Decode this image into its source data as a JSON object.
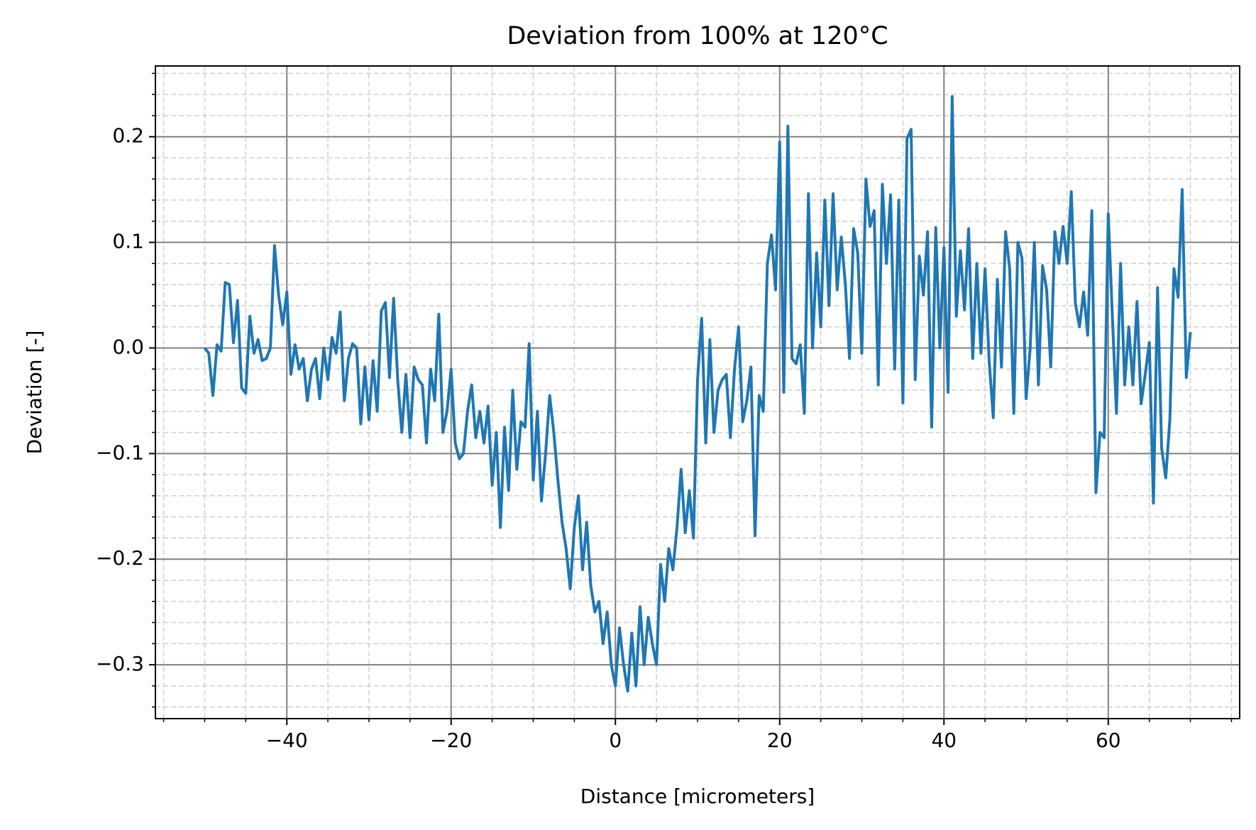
{
  "chart_data": {
    "type": "line",
    "title": "Deviation from 100% at 120°C",
    "xlabel": "Distance [micrometers]",
    "ylabel": "Deviation [-]",
    "xlim": [
      -56,
      76
    ],
    "ylim": [
      -0.351,
      0.267
    ],
    "xticks": [
      {
        "value": -40,
        "label": "−40"
      },
      {
        "value": -20,
        "label": "−20"
      },
      0,
      20,
      40,
      60
    ],
    "yticks": [
      {
        "value": -0.3,
        "label": "−0.3"
      },
      {
        "value": -0.2,
        "label": "−0.2"
      },
      {
        "value": -0.1,
        "label": "−0.1"
      },
      {
        "value": 0,
        "label": "0.0"
      },
      0.1,
      0.2
    ],
    "xticks_minor": [
      -55,
      -50,
      -45,
      -35,
      -30,
      -25,
      -15,
      -10,
      -5,
      5,
      10,
      15,
      25,
      30,
      35,
      45,
      50,
      55,
      65,
      70,
      75
    ],
    "yticks_minor": [
      -0.34,
      -0.32,
      -0.28,
      -0.26,
      -0.24,
      -0.22,
      -0.18,
      -0.16,
      -0.14,
      -0.12,
      -0.08,
      -0.06,
      -0.04,
      -0.02,
      0.02,
      0.04,
      0.06,
      0.08,
      0.12,
      0.14,
      0.16,
      0.18,
      0.22,
      0.24,
      0.26
    ],
    "grid": true,
    "series": [
      {
        "color": "#1f77b4",
        "x": [
          -50,
          -49.5,
          -49,
          -48.5,
          -48,
          -47.5,
          -47,
          -46.5,
          -46,
          -45.5,
          -45,
          -44.5,
          -44,
          -43.5,
          -43,
          -42.5,
          -42,
          -41.5,
          -41,
          -40.5,
          -40,
          -39.5,
          -39,
          -38.5,
          -38,
          -37.5,
          -37,
          -36.5,
          -36,
          -35.5,
          -35,
          -34.5,
          -34,
          -33.5,
          -33,
          -32.5,
          -32,
          -31.5,
          -31,
          -30.5,
          -30,
          -29.5,
          -29,
          -28.5,
          -28,
          -27.5,
          -27,
          -26.5,
          -26,
          -25.5,
          -25,
          -24.5,
          -24,
          -23.5,
          -23,
          -22.5,
          -22,
          -21.5,
          -21,
          -20.5,
          -20,
          -19.5,
          -19,
          -18.5,
          -18,
          -17.5,
          -17,
          -16.5,
          -16,
          -15.5,
          -15,
          -14.5,
          -14,
          -13.5,
          -13,
          -12.5,
          -12,
          -11.5,
          -11,
          -10.5,
          -10,
          -9.5,
          -9,
          -8.5,
          -8,
          -7.5,
          -7,
          -6.5,
          -6,
          -5.5,
          -5,
          -4.5,
          -4,
          -3.5,
          -3,
          -2.5,
          -2,
          -1.5,
          -1,
          -0.5,
          0,
          0.5,
          1,
          1.5,
          2,
          2.5,
          3,
          3.5,
          4,
          4.5,
          5,
          5.5,
          6,
          6.5,
          7,
          7.5,
          8,
          8.5,
          9,
          9.5,
          10,
          10.5,
          11,
          11.5,
          12,
          12.5,
          13,
          13.5,
          14,
          14.5,
          15,
          15.5,
          16,
          16.5,
          17,
          17.5,
          18,
          18.5,
          19,
          19.5,
          20,
          20.5,
          21,
          21.5,
          22,
          22.5,
          23,
          23.5,
          24,
          24.5,
          25,
          25.5,
          26,
          26.5,
          27,
          27.5,
          28,
          28.5,
          29,
          29.5,
          30,
          30.5,
          31,
          31.5,
          32,
          32.5,
          33,
          33.5,
          34,
          34.5,
          35,
          35.5,
          36,
          36.5,
          37,
          37.5,
          38,
          38.5,
          39,
          39.5,
          40,
          40.5,
          41,
          41.5,
          42,
          42.5,
          43,
          43.5,
          44,
          44.5,
          45,
          45.5,
          46,
          46.5,
          47,
          47.5,
          48,
          48.5,
          49,
          49.5,
          50,
          50.5,
          51,
          51.5,
          52,
          52.5,
          53,
          53.5,
          54,
          54.5,
          55,
          55.5,
          56,
          56.5,
          57,
          57.5,
          58,
          58.5,
          59,
          59.5,
          60,
          60.5,
          61,
          61.5,
          62,
          62.5,
          63,
          63.5,
          64,
          64.5,
          65,
          65.5,
          66,
          66.5,
          67,
          67.5,
          68,
          68.5,
          69,
          69.5,
          70
        ],
        "values": [
          0,
          -0.005,
          -0.045,
          0.003,
          -0.003,
          0.062,
          0.06,
          0.005,
          0.045,
          -0.038,
          -0.043,
          0.03,
          -0.005,
          0.008,
          -0.012,
          -0.01,
          0.0,
          0.097,
          0.05,
          0.022,
          0.053,
          -0.025,
          0.003,
          -0.02,
          -0.01,
          -0.05,
          -0.02,
          -0.01,
          -0.048,
          0.0,
          -0.03,
          0.01,
          -0.005,
          0.034,
          -0.05,
          -0.01,
          0.004,
          0.0,
          -0.072,
          -0.018,
          -0.068,
          -0.012,
          -0.06,
          0.035,
          0.043,
          -0.028,
          0.047,
          -0.03,
          -0.08,
          -0.025,
          -0.085,
          -0.018,
          -0.03,
          -0.035,
          -0.09,
          -0.02,
          -0.05,
          0.032,
          -0.08,
          -0.06,
          -0.02,
          -0.09,
          -0.105,
          -0.1,
          -0.06,
          -0.035,
          -0.085,
          -0.06,
          -0.09,
          -0.055,
          -0.13,
          -0.08,
          -0.17,
          -0.075,
          -0.135,
          -0.04,
          -0.115,
          -0.07,
          -0.075,
          0.004,
          -0.125,
          -0.06,
          -0.145,
          -0.1,
          -0.045,
          -0.08,
          -0.125,
          -0.165,
          -0.19,
          -0.228,
          -0.17,
          -0.14,
          -0.21,
          -0.165,
          -0.225,
          -0.25,
          -0.24,
          -0.28,
          -0.25,
          -0.3,
          -0.32,
          -0.265,
          -0.3,
          -0.325,
          -0.27,
          -0.32,
          -0.245,
          -0.3,
          -0.255,
          -0.28,
          -0.3,
          -0.205,
          -0.24,
          -0.19,
          -0.21,
          -0.17,
          -0.115,
          -0.175,
          -0.135,
          -0.18,
          -0.03,
          0.028,
          -0.09,
          0.008,
          -0.08,
          -0.04,
          -0.03,
          -0.025,
          -0.085,
          -0.02,
          0.02,
          -0.07,
          -0.05,
          -0.018,
          -0.178,
          -0.045,
          -0.06,
          0.08,
          0.107,
          0.055,
          0.195,
          -0.042,
          0.21,
          -0.01,
          -0.015,
          0.003,
          -0.062,
          0.146,
          0.0,
          0.09,
          0.02,
          0.14,
          0.04,
          0.146,
          0.055,
          0.105,
          0.06,
          -0.01,
          0.113,
          0.09,
          -0.005,
          0.16,
          0.115,
          0.13,
          -0.035,
          0.155,
          0.08,
          0.145,
          -0.02,
          0.14,
          -0.052,
          0.198,
          0.207,
          -0.03,
          0.087,
          0.05,
          0.11,
          -0.075,
          0.114,
          0.0,
          0.095,
          -0.042,
          0.238,
          0.03,
          0.092,
          0.036,
          0.113,
          -0.01,
          0.08,
          -0.005,
          0.075,
          -0.012,
          -0.066,
          0.065,
          -0.018,
          0.11,
          0.075,
          -0.062,
          0.1,
          0.085,
          -0.048,
          0.0,
          0.1,
          -0.035,
          0.078,
          0.055,
          -0.018,
          0.11,
          0.08,
          0.115,
          0.08,
          0.148,
          0.042,
          0.02,
          0.053,
          0.012,
          0.13,
          -0.137,
          -0.08,
          -0.085,
          0.127,
          0.03,
          -0.062,
          0.08,
          -0.035,
          0.02,
          -0.035,
          0.044,
          -0.053,
          -0.025,
          0.005,
          -0.147,
          0.057,
          -0.095,
          -0.123,
          -0.068,
          0.075,
          0.048,
          0.15,
          -0.028,
          0.015
        ]
      }
    ]
  }
}
